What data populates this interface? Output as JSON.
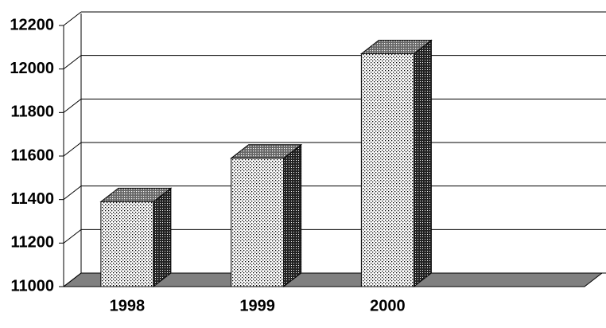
{
  "chart_data": {
    "type": "bar3d",
    "categories": [
      "1998",
      "1999",
      "2000",
      null
    ],
    "values": [
      11390,
      11590,
      12070,
      null
    ],
    "ylim": [
      11000,
      12200
    ],
    "yticks": [
      11000,
      11200,
      11400,
      11600,
      11800,
      12000,
      12200
    ],
    "grid": true
  }
}
